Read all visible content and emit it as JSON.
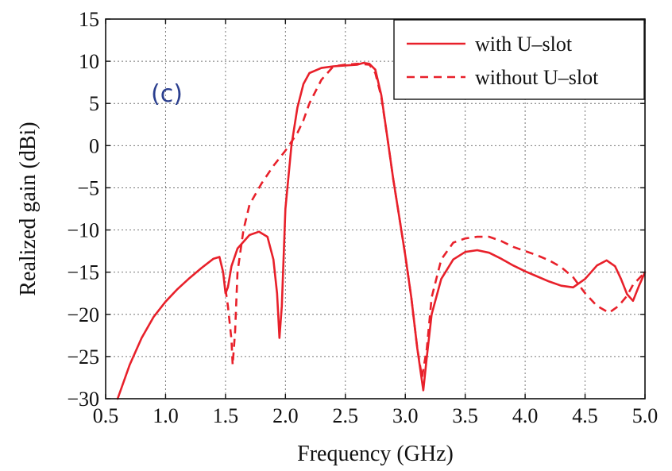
{
  "chart_data": {
    "type": "line",
    "panel_label": "(c)",
    "title": "",
    "xlabel": "Frequency (GHz)",
    "ylabel": "Realized gain  (dBi)",
    "xlim": [
      0.5,
      5.0
    ],
    "ylim": [
      -30,
      15
    ],
    "xticks": [
      0.5,
      1.0,
      1.5,
      2.0,
      2.5,
      3.0,
      3.5,
      4.0,
      4.5,
      5.0
    ],
    "xtick_labels": [
      "0.5",
      "1.0",
      "1.5",
      "2.0",
      "2.5",
      "3.0",
      "3.5",
      "4.0",
      "4.5",
      "5.0"
    ],
    "yticks": [
      -30,
      -25,
      -20,
      -15,
      -10,
      -5,
      0,
      5,
      10,
      15
    ],
    "ytick_labels": [
      "−30",
      "−25",
      "−20",
      "−15",
      "−10",
      "−5",
      "0",
      "5",
      "10",
      "15"
    ],
    "grid": true,
    "legend_position": "top-right",
    "color": "#e8202a",
    "series": [
      {
        "name": "with U–slot",
        "style": "solid",
        "points": [
          [
            0.6,
            -30.0
          ],
          [
            0.7,
            -26.0
          ],
          [
            0.8,
            -22.8
          ],
          [
            0.9,
            -20.3
          ],
          [
            1.0,
            -18.5
          ],
          [
            1.1,
            -17.0
          ],
          [
            1.2,
            -15.7
          ],
          [
            1.3,
            -14.5
          ],
          [
            1.4,
            -13.4
          ],
          [
            1.45,
            -13.2
          ],
          [
            1.48,
            -15.0
          ],
          [
            1.5,
            -17.5
          ],
          [
            1.52,
            -16.8
          ],
          [
            1.55,
            -14.3
          ],
          [
            1.6,
            -12.2
          ],
          [
            1.7,
            -10.6
          ],
          [
            1.78,
            -10.2
          ],
          [
            1.85,
            -10.8
          ],
          [
            1.9,
            -13.5
          ],
          [
            1.93,
            -17.5
          ],
          [
            1.95,
            -22.8
          ],
          [
            1.97,
            -19.0
          ],
          [
            2.0,
            -7.5
          ],
          [
            2.05,
            0.0
          ],
          [
            2.1,
            4.5
          ],
          [
            2.15,
            7.3
          ],
          [
            2.2,
            8.6
          ],
          [
            2.3,
            9.2
          ],
          [
            2.4,
            9.4
          ],
          [
            2.5,
            9.5
          ],
          [
            2.6,
            9.6
          ],
          [
            2.65,
            9.8
          ],
          [
            2.7,
            9.7
          ],
          [
            2.75,
            9.0
          ],
          [
            2.8,
            6.0
          ],
          [
            2.85,
            1.0
          ],
          [
            2.9,
            -4.0
          ],
          [
            2.95,
            -8.5
          ],
          [
            3.0,
            -13.0
          ],
          [
            3.05,
            -18.0
          ],
          [
            3.1,
            -24.0
          ],
          [
            3.15,
            -29.0
          ],
          [
            3.18,
            -25.0
          ],
          [
            3.22,
            -20.0
          ],
          [
            3.3,
            -15.8
          ],
          [
            3.4,
            -13.5
          ],
          [
            3.5,
            -12.6
          ],
          [
            3.6,
            -12.4
          ],
          [
            3.7,
            -12.7
          ],
          [
            3.8,
            -13.4
          ],
          [
            3.9,
            -14.2
          ],
          [
            4.0,
            -14.9
          ],
          [
            4.1,
            -15.5
          ],
          [
            4.2,
            -16.1
          ],
          [
            4.3,
            -16.6
          ],
          [
            4.4,
            -16.8
          ],
          [
            4.5,
            -15.8
          ],
          [
            4.6,
            -14.2
          ],
          [
            4.68,
            -13.6
          ],
          [
            4.75,
            -14.3
          ],
          [
            4.8,
            -15.8
          ],
          [
            4.85,
            -17.6
          ],
          [
            4.9,
            -18.4
          ],
          [
            4.95,
            -16.6
          ],
          [
            5.0,
            -15.0
          ]
        ]
      },
      {
        "name": "without U–slot",
        "style": "dashed",
        "points": [
          [
            1.5,
            -17.0
          ],
          [
            1.52,
            -19.0
          ],
          [
            1.55,
            -23.0
          ],
          [
            1.56,
            -26.0
          ],
          [
            1.58,
            -22.0
          ],
          [
            1.6,
            -15.0
          ],
          [
            1.65,
            -10.0
          ],
          [
            1.7,
            -7.0
          ],
          [
            1.8,
            -4.5
          ],
          [
            1.9,
            -2.4
          ],
          [
            2.0,
            -0.6
          ],
          [
            2.1,
            1.5
          ],
          [
            2.15,
            3.0
          ],
          [
            2.2,
            5.0
          ],
          [
            2.3,
            7.8
          ],
          [
            2.4,
            9.4
          ],
          [
            2.5,
            9.6
          ],
          [
            2.6,
            9.7
          ],
          [
            2.7,
            9.6
          ],
          [
            2.75,
            8.6
          ],
          [
            2.8,
            5.8
          ],
          [
            2.85,
            1.0
          ],
          [
            2.9,
            -4.0
          ],
          [
            2.95,
            -8.5
          ],
          [
            3.0,
            -13.0
          ],
          [
            3.05,
            -18.0
          ],
          [
            3.1,
            -24.0
          ],
          [
            3.14,
            -27.5
          ],
          [
            3.18,
            -24.0
          ],
          [
            3.22,
            -18.0
          ],
          [
            3.3,
            -13.5
          ],
          [
            3.4,
            -11.5
          ],
          [
            3.5,
            -11.0
          ],
          [
            3.6,
            -10.8
          ],
          [
            3.7,
            -10.8
          ],
          [
            3.8,
            -11.3
          ],
          [
            3.9,
            -12.0
          ],
          [
            4.0,
            -12.5
          ],
          [
            4.1,
            -13.0
          ],
          [
            4.2,
            -13.6
          ],
          [
            4.3,
            -14.4
          ],
          [
            4.4,
            -15.6
          ],
          [
            4.5,
            -17.5
          ],
          [
            4.6,
            -19.0
          ],
          [
            4.7,
            -19.8
          ],
          [
            4.78,
            -19.0
          ],
          [
            4.85,
            -17.8
          ],
          [
            4.9,
            -16.5
          ],
          [
            5.0,
            -15.0
          ]
        ]
      }
    ]
  }
}
